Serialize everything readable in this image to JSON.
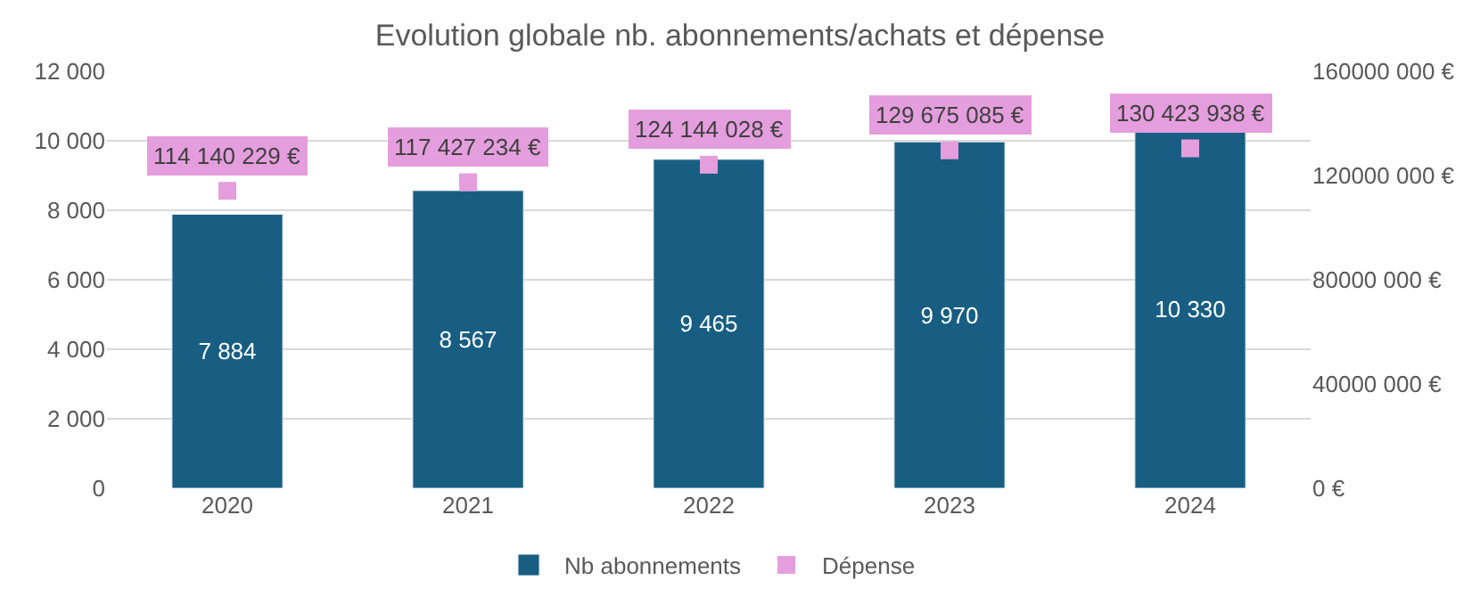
{
  "chart_data": {
    "type": "bar",
    "title": "Evolution globale nb. abonnements/achats et dépense",
    "categories": [
      "2020",
      "2021",
      "2022",
      "2023",
      "2024"
    ],
    "series": [
      {
        "name": "Nb abonnements",
        "color": "#175e82",
        "values": [
          7884,
          8567,
          9465,
          9970,
          10330
        ],
        "value_labels": [
          "7 884",
          "8 567",
          "9 465",
          "9 970",
          "10 330"
        ]
      },
      {
        "name": "Dépense",
        "type": "scatter",
        "axis": "y2",
        "color": "#e59edd",
        "marker": "square",
        "values": [
          114140229,
          117427234,
          124144028,
          129675085,
          130423938
        ],
        "value_labels": [
          "114 140 229 €",
          "117 427 234 €",
          "124 144 028 €",
          "129 675 085 €",
          "130 423 938 €"
        ]
      }
    ],
    "ylim": [
      0,
      12000
    ],
    "yticks": [
      0,
      {
        "value": 2000,
        "label": "2 000"
      },
      {
        "value": 4000,
        "label": "4 000"
      },
      {
        "value": 6000,
        "label": "6 000"
      },
      {
        "value": 8000,
        "label": "8 000"
      },
      {
        "value": 10000,
        "label": "10 000"
      },
      {
        "value": 12000,
        "label": "12 000"
      }
    ],
    "y2lim": [
      0,
      160000000
    ],
    "y2ticks": [
      {
        "value": 0,
        "label": "0 €"
      },
      {
        "value": 40000000,
        "label": "40000 000 €"
      },
      {
        "value": 80000000,
        "label": "80000 000 €"
      },
      {
        "value": 120000000,
        "label": "120000 000 €"
      },
      {
        "value": 160000000,
        "label": "160000 000 €"
      }
    ],
    "grid": "y",
    "legend": "bottom"
  }
}
